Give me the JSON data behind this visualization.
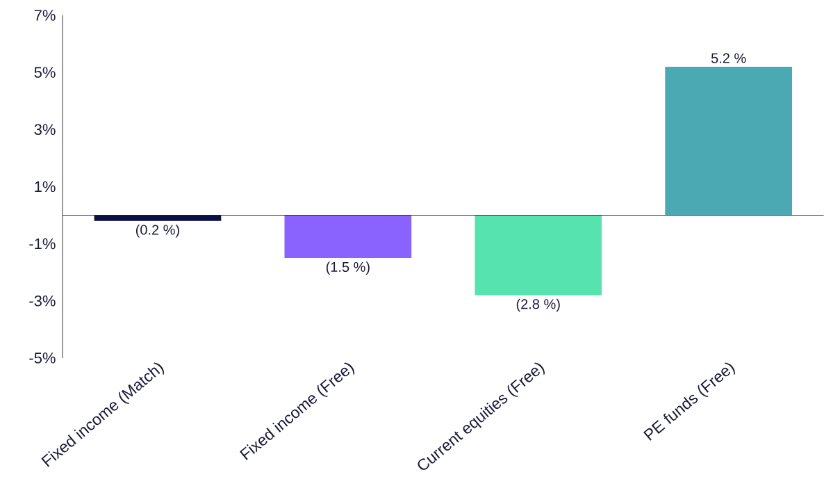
{
  "chart_data": {
    "type": "bar",
    "categories": [
      "Fixed income (Match)",
      "Fixed income (Free)",
      "Current equities (Free)",
      "PE funds (Free)"
    ],
    "values": [
      -0.2,
      -1.5,
      -2.8,
      5.2
    ],
    "colors": [
      "#0d0f45",
      "#8a63ff",
      "#57e3b0",
      "#4aa9b2"
    ],
    "value_labels": [
      "(0.2 %)",
      "(1.5 %)",
      "(2.8 %)",
      "5.2 %"
    ],
    "ylim": [
      -5,
      7
    ],
    "yticks": [
      {
        "value": -5,
        "label": "-5%"
      },
      {
        "value": -3,
        "label": "-3%"
      },
      {
        "value": -1,
        "label": "-1%"
      },
      {
        "value": 1,
        "label": "1%"
      },
      {
        "value": 3,
        "label": "3%"
      },
      {
        "value": 5,
        "label": "5%"
      },
      {
        "value": 7,
        "label": "7%"
      }
    ],
    "grid": false
  }
}
